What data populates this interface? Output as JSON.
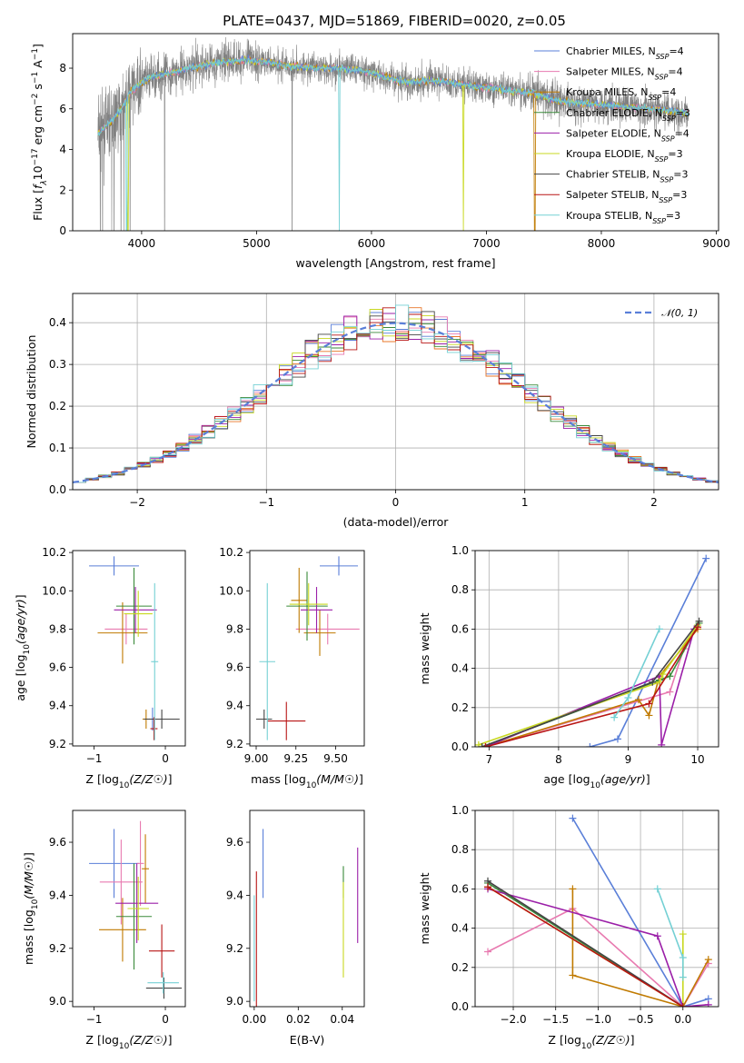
{
  "chart_data": [
    {
      "id": "spectrum",
      "type": "line",
      "title": "PLATE=0437, MJD=51869, FIBERID=0020, z=0.05",
      "xlabel": "wavelength [Angstrom, rest frame]",
      "ylabel": "Flux [f_λ 10^-17 erg cm^-2 s^-1 A^-1]",
      "xlim": [
        3400,
        9020
      ],
      "ylim": [
        0,
        9.7
      ],
      "xticks": [
        4000,
        5000,
        6000,
        7000,
        8000,
        9000
      ],
      "yticks": [
        0,
        2,
        4,
        6,
        8
      ],
      "legend_position": "right",
      "legend": [
        {
          "name": "Chabrier MILES",
          "nssp": "4",
          "color": "#5a7fd8"
        },
        {
          "name": "Salpeter MILES",
          "nssp": "4",
          "color": "#e87ab0"
        },
        {
          "name": "Kroupa MILES",
          "nssp": "4",
          "color": "#c07a00"
        },
        {
          "name": "Chabrier ELODIE",
          "nssp": "3",
          "color": "#3a8a3a"
        },
        {
          "name": "Salpeter ELODIE",
          "nssp": "4",
          "color": "#9b1fa8"
        },
        {
          "name": "Kroupa ELODIE",
          "nssp": "3",
          "color": "#c8d820"
        },
        {
          "name": "Chabrier STELIB",
          "nssp": "3",
          "color": "#444444"
        },
        {
          "name": "Salpeter STELIB",
          "nssp": "3",
          "color": "#b81414"
        },
        {
          "name": "Kroupa STELIB",
          "nssp": "3",
          "color": "#74d0d4"
        }
      ],
      "data_color": "#808080",
      "model_color": "#74d0d4",
      "continuum_points": {
        "x": [
          3620,
          3700,
          3800,
          3900,
          4000,
          4100,
          4200,
          4300,
          4400,
          4500,
          4700,
          4900,
          5100,
          5300,
          5500,
          5700,
          5900,
          6100,
          6300,
          6500,
          6700,
          6900,
          7100,
          7300,
          7400,
          7600,
          7800,
          8000,
          8200,
          8400,
          8600,
          8760
        ],
        "y": [
          4.8,
          5.2,
          5.8,
          6.8,
          7.3,
          7.6,
          7.7,
          7.8,
          8.0,
          8.1,
          8.3,
          8.4,
          8.3,
          8.1,
          8.0,
          8.0,
          7.9,
          7.6,
          7.3,
          7.4,
          7.3,
          7.1,
          7.0,
          6.8,
          6.8,
          6.4,
          6.3,
          6.2,
          6.1,
          6.0,
          5.9,
          5.8
        ]
      }
    },
    {
      "id": "residuals",
      "type": "histogram",
      "xlabel": "(data-model)/error",
      "ylabel": "Normed distribution",
      "xlim": [
        -2.5,
        2.5
      ],
      "ylim": [
        0,
        0.47
      ],
      "xticks": [
        -2,
        -1,
        0,
        1,
        2
      ],
      "yticks": [
        0.0,
        0.1,
        0.2,
        0.3,
        0.4
      ],
      "gaussian_label": "𝒩(0,1)",
      "gaussian_color": "#5a7fd8",
      "legend_position": "top-right"
    },
    {
      "id": "age-Z",
      "type": "scatter",
      "xlabel": "Z [log10(Z/Z☉)]",
      "ylabel": "age  [log10(age/yr)]",
      "xlim": [
        -1.3,
        0.28
      ],
      "ylim": [
        9.19,
        10.21
      ],
      "xticks": [
        -1,
        0
      ],
      "yticks": [
        9.2,
        9.4,
        9.6,
        9.8,
        10.0,
        10.2
      ],
      "points": [
        {
          "series": "Chabrier MILES",
          "x": -0.72,
          "y": 10.13,
          "xerr": 0.35,
          "yerr": 0.05
        },
        {
          "series": "Chabrier MILES",
          "x": -0.18,
          "y": 9.33,
          "xerr": 0.05,
          "yerr": 0.06
        },
        {
          "series": "Salpeter MILES",
          "x": -0.55,
          "y": 9.8,
          "xerr": 0.3,
          "yerr": 0.08
        },
        {
          "series": "Kroupa MILES",
          "x": -0.6,
          "y": 9.78,
          "xerr": 0.35,
          "yerr": 0.16
        },
        {
          "series": "Kroupa MILES",
          "x": -0.27,
          "y": 9.33,
          "xerr": 0.05,
          "yerr": 0.05
        },
        {
          "series": "Chabrier ELODIE",
          "x": -0.44,
          "y": 9.92,
          "xerr": 0.25,
          "yerr": 0.2
        },
        {
          "series": "Salpeter ELODIE",
          "x": -0.42,
          "y": 9.9,
          "xerr": 0.3,
          "yerr": 0.12
        },
        {
          "series": "Kroupa ELODIE",
          "x": -0.38,
          "y": 9.88,
          "xerr": 0.2,
          "yerr": 0.12
        },
        {
          "series": "Chabrier STELIB",
          "x": -0.05,
          "y": 9.33,
          "xerr": 0.25,
          "yerr": 0.05
        },
        {
          "series": "Salpeter STELIB",
          "x": -0.16,
          "y": 9.28,
          "xerr": 0.05,
          "yerr": 0.06
        },
        {
          "series": "Kroupa STELIB",
          "x": -0.15,
          "y": 9.63,
          "xerr": 0.05,
          "yerr": 0.41
        }
      ]
    },
    {
      "id": "age-mass",
      "type": "scatter",
      "xlabel": "mass [log10(M/M☉)]",
      "ylabel": "",
      "xlim": [
        8.96,
        9.68
      ],
      "ylim": [
        9.19,
        10.21
      ],
      "xticks": [
        9.0,
        9.25,
        9.5
      ],
      "yticks": [
        9.2,
        9.4,
        9.6,
        9.8,
        10.0,
        10.2
      ],
      "points": [
        {
          "series": "Chabrier MILES",
          "x": 9.52,
          "y": 10.13,
          "xerr": 0.12,
          "yerr": 0.05
        },
        {
          "series": "Salpeter MILES",
          "x": 9.45,
          "y": 9.8,
          "xerr": 0.2,
          "yerr": 0.08
        },
        {
          "series": "Kroupa MILES",
          "x": 9.27,
          "y": 9.95,
          "xerr": 0.05,
          "yerr": 0.17
        },
        {
          "series": "Kroupa MILES",
          "x": 9.4,
          "y": 9.78,
          "xerr": 0.1,
          "yerr": 0.12
        },
        {
          "series": "Chabrier ELODIE",
          "x": 9.32,
          "y": 9.92,
          "xerr": 0.13,
          "yerr": 0.18
        },
        {
          "series": "Salpeter ELODIE",
          "x": 9.38,
          "y": 9.9,
          "xerr": 0.1,
          "yerr": 0.12
        },
        {
          "series": "Kroupa ELODIE",
          "x": 9.33,
          "y": 9.93,
          "xerr": 0.12,
          "yerr": 0.11
        },
        {
          "series": "Chabrier STELIB",
          "x": 9.05,
          "y": 9.33,
          "xerr": 0.05,
          "yerr": 0.05
        },
        {
          "series": "Salpeter STELIB",
          "x": 9.19,
          "y": 9.32,
          "xerr": 0.12,
          "yerr": 0.1
        },
        {
          "series": "Kroupa STELIB",
          "x": 9.07,
          "y": 9.63,
          "xerr": 0.05,
          "yerr": 0.41
        }
      ]
    },
    {
      "id": "massweight-age",
      "type": "line",
      "xlabel": "age  [log10(age/yr)]",
      "ylabel": "mass weight",
      "xlim": [
        6.8,
        10.3
      ],
      "ylim": [
        0,
        1.0
      ],
      "xticks": [
        7,
        8,
        9,
        10
      ],
      "yticks": [
        0.0,
        0.2,
        0.4,
        0.6,
        0.8,
        1.0
      ],
      "series": [
        {
          "name": "Chabrier MILES",
          "x": [
            8.45,
            8.85,
            10.12
          ],
          "y": [
            0.0,
            0.04,
            0.96
          ]
        },
        {
          "name": "Salpeter MILES",
          "x": [
            6.95,
            9.6,
            9.8
          ],
          "y": [
            0.0,
            0.28,
            0.5
          ]
        },
        {
          "name": "Kroupa MILES",
          "x": [
            6.95,
            9.15,
            9.3,
            9.45,
            10.0
          ],
          "y": [
            0.0,
            0.24,
            0.16,
            0.36,
            0.6
          ]
        },
        {
          "name": "Chabrier ELODIE",
          "x": [
            6.9,
            9.45,
            9.6,
            10.02
          ],
          "y": [
            0.0,
            0.34,
            0.36,
            0.63
          ]
        },
        {
          "name": "Salpeter ELODIE",
          "x": [
            6.95,
            9.45,
            9.48,
            9.95
          ],
          "y": [
            0.0,
            0.36,
            0.01,
            0.6
          ]
        },
        {
          "name": "Kroupa ELODIE",
          "x": [
            6.85,
            9.45,
            9.5,
            10.0
          ],
          "y": [
            0.01,
            0.33,
            0.37,
            0.62
          ]
        },
        {
          "name": "Chabrier STELIB",
          "x": [
            6.9,
            9.35,
            10.02
          ],
          "y": [
            0.0,
            0.33,
            0.64
          ]
        },
        {
          "name": "Salpeter STELIB",
          "x": [
            6.95,
            9.3,
            10.0
          ],
          "y": [
            0.0,
            0.22,
            0.61
          ]
        },
        {
          "name": "Kroupa STELIB",
          "x": [
            8.8,
            9.0,
            9.45
          ],
          "y": [
            0.15,
            0.25,
            0.6
          ]
        }
      ]
    },
    {
      "id": "mass-Z",
      "type": "scatter",
      "xlabel": "Z [log10(Z/Z☉)]",
      "ylabel": "mass [log10(M/M☉)]",
      "xlim": [
        -1.3,
        0.28
      ],
      "ylim": [
        8.98,
        9.72
      ],
      "xticks": [
        -1,
        0
      ],
      "yticks": [
        9.0,
        9.2,
        9.4,
        9.6
      ],
      "points": [
        {
          "series": "Chabrier MILES",
          "x": -0.72,
          "y": 9.52,
          "xerr": 0.35,
          "yerr": 0.13
        },
        {
          "series": "Salpeter MILES",
          "x": -0.62,
          "y": 9.45,
          "xerr": 0.3,
          "yerr": 0.16
        },
        {
          "series": "Salpeter MILES",
          "x": -0.35,
          "y": 9.52,
          "xerr": 0.05,
          "yerr": 0.16
        },
        {
          "series": "Kroupa MILES",
          "x": -0.6,
          "y": 9.27,
          "xerr": 0.33,
          "yerr": 0.12
        },
        {
          "series": "Kroupa MILES",
          "x": -0.28,
          "y": 9.5,
          "xerr": 0.05,
          "yerr": 0.13
        },
        {
          "series": "Chabrier ELODIE",
          "x": -0.44,
          "y": 9.32,
          "xerr": 0.25,
          "yerr": 0.2
        },
        {
          "series": "Salpeter ELODIE",
          "x": -0.4,
          "y": 9.37,
          "xerr": 0.3,
          "yerr": 0.15
        },
        {
          "series": "Kroupa ELODIE",
          "x": -0.38,
          "y": 9.35,
          "xerr": 0.15,
          "yerr": 0.12
        },
        {
          "series": "Chabrier STELIB",
          "x": -0.02,
          "y": 9.05,
          "xerr": 0.25,
          "yerr": 0.04
        },
        {
          "series": "Salpeter STELIB",
          "x": -0.05,
          "y": 9.19,
          "xerr": 0.18,
          "yerr": 0.1
        },
        {
          "series": "Kroupa STELIB",
          "x": -0.03,
          "y": 9.07,
          "xerr": 0.22,
          "yerr": 0.04
        }
      ]
    },
    {
      "id": "mass-ebv",
      "type": "scatter",
      "xlabel": "E(B-V)",
      "ylabel": "",
      "xlim": [
        -0.002,
        0.05
      ],
      "ylim": [
        8.98,
        9.72
      ],
      "xticks": [
        0.0,
        0.02,
        0.04
      ],
      "yticks": [
        9.0,
        9.2,
        9.4,
        9.6
      ],
      "points": [
        {
          "series": "Chabrier MILES",
          "x": 0.004,
          "y": 9.52,
          "xerr": 0.0,
          "yerr": 0.13
        },
        {
          "series": "Salpeter STELIB",
          "x": 0.001,
          "y": 9.19,
          "xerr": 0.0,
          "yerr": 0.3
        },
        {
          "series": "Kroupa STELIB",
          "x": 0.0,
          "y": 9.2,
          "xerr": 0.0,
          "yerr": 0.2
        },
        {
          "series": "Chabrier ELODIE",
          "x": 0.0405,
          "y": 9.45,
          "xerr": 0.0,
          "yerr": 0.06
        },
        {
          "series": "Kroupa ELODIE",
          "x": 0.0405,
          "y": 9.27,
          "xerr": 0.0,
          "yerr": 0.18
        },
        {
          "series": "Salpeter ELODIE",
          "x": 0.047,
          "y": 9.4,
          "xerr": 0.0,
          "yerr": 0.18
        }
      ]
    },
    {
      "id": "massweight-Z",
      "type": "line",
      "xlabel": "Z [log10(Z/Z☉)]",
      "ylabel": "mass weight",
      "xlim": [
        -2.45,
        0.42
      ],
      "ylim": [
        0,
        1.0
      ],
      "xticks": [
        -2.0,
        -1.5,
        -1.0,
        -0.5,
        0.0
      ],
      "yticks": [
        0.0,
        0.2,
        0.4,
        0.6,
        0.8,
        1.0
      ],
      "series": [
        {
          "name": "Chabrier MILES",
          "x": [
            -1.3,
            0.0,
            0.3
          ],
          "y": [
            0.96,
            0.0,
            0.04
          ]
        },
        {
          "name": "Salpeter MILES",
          "x": [
            -2.3,
            -1.3,
            0.0,
            0.3
          ],
          "y": [
            0.28,
            0.5,
            0.0,
            0.22
          ]
        },
        {
          "name": "Kroupa MILES",
          "x": [
            -1.3,
            -1.3,
            0.0,
            0.3
          ],
          "y": [
            0.6,
            0.16,
            0.0,
            0.24
          ]
        },
        {
          "name": "Chabrier ELODIE",
          "x": [
            -2.3,
            0.0
          ],
          "y": [
            0.63,
            0.0
          ]
        },
        {
          "name": "Salpeter ELODIE",
          "x": [
            -2.3,
            -0.3,
            0.0,
            0.3
          ],
          "y": [
            0.6,
            0.36,
            0.0,
            0.01
          ]
        },
        {
          "name": "Kroupa ELODIE",
          "x": [
            -2.3,
            0.0,
            0.0
          ],
          "y": [
            0.61,
            0.0,
            0.37
          ]
        },
        {
          "name": "Chabrier STELIB",
          "x": [
            -2.3,
            0.0
          ],
          "y": [
            0.64,
            0.0
          ]
        },
        {
          "name": "Salpeter STELIB",
          "x": [
            -2.3,
            0.0
          ],
          "y": [
            0.61,
            0.0
          ]
        },
        {
          "name": "Kroupa STELIB",
          "x": [
            -0.3,
            0.0,
            0.0
          ],
          "y": [
            0.6,
            0.25,
            0.15
          ]
        }
      ]
    }
  ],
  "ui": {
    "title": "PLATE=0437, MJD=51869, FIBERID=0020, z=0.05",
    "spectrum_xlabel": "wavelength [Angstrom, rest frame]",
    "hist_xlabel": "(data-model)/error",
    "hist_ylabel": "Normed distribution",
    "gaussian_label": "𝒩(0, 1)",
    "age_ylabel": "age",
    "mass_ylabel": "mass",
    "massweight_ylabel": "mass weight",
    "z_xlabel": "Z",
    "mass_xlabel": "mass",
    "age_xlabel": "age",
    "ebv_xlabel": "E(B-V)"
  }
}
